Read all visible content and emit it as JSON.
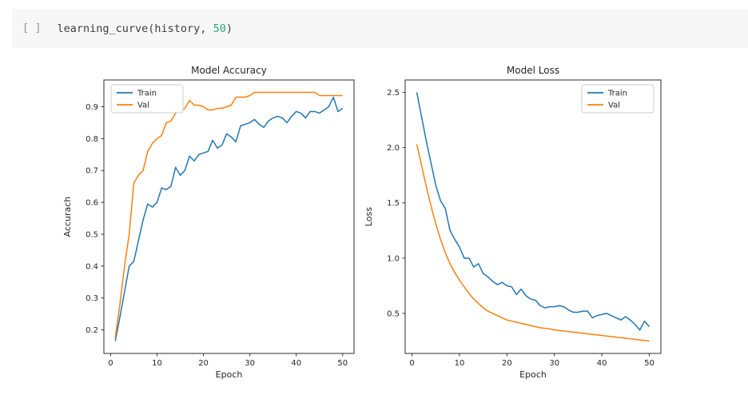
{
  "code_cell": {
    "gutter_label": "[ ]",
    "code": {
      "prefix": "learning_curve(history, ",
      "number": "50",
      "suffix": ")"
    }
  },
  "colors": {
    "train": "#1f77b4",
    "val": "#ff7f0e",
    "cell_background": "#f7f7f7",
    "code_text": "#3d3d3d",
    "code_number": "#2aa876",
    "gutter_text": "#8f8f8f",
    "axis_text": "#262626",
    "spine": "#2e2e2e",
    "legend_border": "#cccccc"
  },
  "chart_data": [
    {
      "type": "line",
      "title": "Model Accuracy",
      "xlabel": "Epoch",
      "ylabel": "Accurach",
      "xlim": [
        -1.45,
        52.45
      ],
      "ylim": [
        0.126,
        0.984
      ],
      "xticks": [
        0,
        10,
        20,
        30,
        40,
        50
      ],
      "yticks": [
        0.2,
        0.3,
        0.4,
        0.5,
        0.6,
        0.7,
        0.8,
        0.9
      ],
      "ytick_decimals": 1,
      "grid": false,
      "legend_position": "upper-left",
      "x": [
        1,
        2,
        3,
        4,
        5,
        6,
        7,
        8,
        9,
        10,
        11,
        12,
        13,
        14,
        15,
        16,
        17,
        18,
        19,
        20,
        21,
        22,
        23,
        24,
        25,
        26,
        27,
        28,
        29,
        30,
        31,
        32,
        33,
        34,
        35,
        36,
        37,
        38,
        39,
        40,
        41,
        42,
        43,
        44,
        45,
        46,
        47,
        48,
        49,
        50
      ],
      "series": [
        {
          "name": "Train",
          "color": "#1f77b4",
          "values": [
            0.165,
            0.24,
            0.32,
            0.4,
            0.415,
            0.48,
            0.545,
            0.595,
            0.585,
            0.6,
            0.645,
            0.64,
            0.65,
            0.71,
            0.685,
            0.7,
            0.745,
            0.73,
            0.75,
            0.755,
            0.76,
            0.795,
            0.77,
            0.78,
            0.815,
            0.805,
            0.79,
            0.84,
            0.845,
            0.85,
            0.86,
            0.845,
            0.835,
            0.855,
            0.865,
            0.87,
            0.865,
            0.85,
            0.87,
            0.885,
            0.88,
            0.865,
            0.885,
            0.885,
            0.88,
            0.89,
            0.9,
            0.93,
            0.885,
            0.895
          ]
        },
        {
          "name": "Val",
          "color": "#ff7f0e",
          "values": [
            0.175,
            0.28,
            0.4,
            0.5,
            0.66,
            0.685,
            0.7,
            0.76,
            0.785,
            0.8,
            0.81,
            0.85,
            0.855,
            0.88,
            0.89,
            0.895,
            0.92,
            0.905,
            0.905,
            0.9,
            0.89,
            0.89,
            0.895,
            0.895,
            0.9,
            0.905,
            0.93,
            0.93,
            0.93,
            0.935,
            0.945,
            0.945,
            0.945,
            0.945,
            0.945,
            0.945,
            0.945,
            0.945,
            0.945,
            0.945,
            0.945,
            0.945,
            0.945,
            0.945,
            0.935,
            0.935,
            0.935,
            0.935,
            0.935,
            0.935
          ]
        }
      ]
    },
    {
      "type": "line",
      "title": "Model Loss",
      "xlabel": "Epoch",
      "ylabel": "Loss",
      "xlim": [
        -1.45,
        52.45
      ],
      "ylim": [
        0.1375,
        2.6125
      ],
      "xticks": [
        0,
        10,
        20,
        30,
        40,
        50
      ],
      "yticks": [
        0.5,
        1.0,
        1.5,
        2.0,
        2.5
      ],
      "ytick_decimals": 1,
      "grid": false,
      "legend_position": "upper-right",
      "x": [
        1,
        2,
        3,
        4,
        5,
        6,
        7,
        8,
        9,
        10,
        11,
        12,
        13,
        14,
        15,
        16,
        17,
        18,
        19,
        20,
        21,
        22,
        23,
        24,
        25,
        26,
        27,
        28,
        29,
        30,
        31,
        32,
        33,
        34,
        35,
        36,
        37,
        38,
        39,
        40,
        41,
        42,
        43,
        44,
        45,
        46,
        47,
        48,
        49,
        50
      ],
      "series": [
        {
          "name": "Train",
          "color": "#1f77b4",
          "values": [
            2.5,
            2.28,
            2.06,
            1.86,
            1.66,
            1.52,
            1.45,
            1.25,
            1.17,
            1.1,
            1.0,
            1.0,
            0.92,
            0.95,
            0.86,
            0.83,
            0.79,
            0.76,
            0.78,
            0.75,
            0.74,
            0.67,
            0.72,
            0.66,
            0.63,
            0.62,
            0.57,
            0.55,
            0.56,
            0.56,
            0.57,
            0.56,
            0.53,
            0.51,
            0.51,
            0.52,
            0.52,
            0.46,
            0.48,
            0.49,
            0.5,
            0.48,
            0.46,
            0.44,
            0.47,
            0.44,
            0.4,
            0.35,
            0.43,
            0.38
          ]
        },
        {
          "name": "Val",
          "color": "#ff7f0e",
          "values": [
            2.03,
            1.84,
            1.65,
            1.47,
            1.31,
            1.17,
            1.05,
            0.95,
            0.87,
            0.8,
            0.74,
            0.68,
            0.63,
            0.59,
            0.55,
            0.52,
            0.5,
            0.48,
            0.46,
            0.44,
            0.43,
            0.42,
            0.41,
            0.4,
            0.39,
            0.38,
            0.37,
            0.365,
            0.36,
            0.35,
            0.345,
            0.34,
            0.335,
            0.33,
            0.325,
            0.32,
            0.315,
            0.31,
            0.305,
            0.3,
            0.295,
            0.29,
            0.285,
            0.28,
            0.275,
            0.27,
            0.265,
            0.26,
            0.255,
            0.25
          ]
        }
      ]
    }
  ]
}
